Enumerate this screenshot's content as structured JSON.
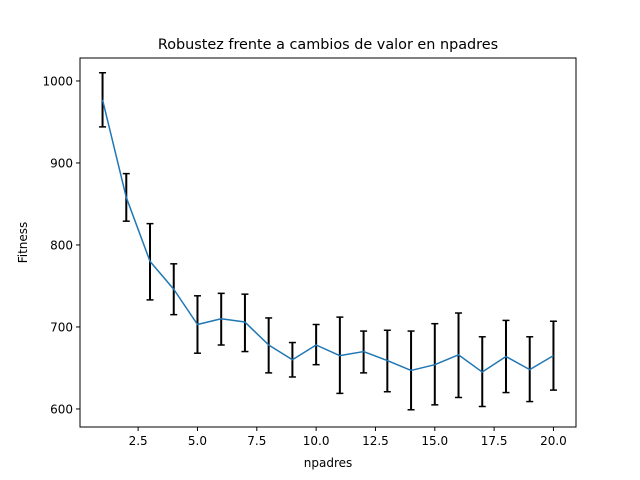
{
  "chart_data": {
    "type": "line",
    "title": "Robustez frente a cambios de valor en npadres",
    "xlabel": "npadres",
    "ylabel": "Fitness",
    "xlim": [
      0.05,
      20.95
    ],
    "ylim": [
      578,
      1028
    ],
    "xticks": [
      2.5,
      5.0,
      7.5,
      10.0,
      12.5,
      15.0,
      17.5,
      20.0
    ],
    "xtick_labels": [
      "2.5",
      "5.0",
      "7.5",
      "10.0",
      "12.5",
      "15.0",
      "17.5",
      "20.0"
    ],
    "yticks": [
      600,
      700,
      800,
      900,
      1000
    ],
    "ytick_labels": [
      "600",
      "700",
      "800",
      "900",
      "1000"
    ],
    "grid": false,
    "series": [
      {
        "color": "#1f77b4",
        "x": [
          1,
          2,
          3,
          4,
          5,
          6,
          7,
          8,
          9,
          10,
          11,
          12,
          13,
          14,
          15,
          16,
          17,
          18,
          19,
          20
        ],
        "y": [
          977,
          858,
          780,
          746,
          703,
          710,
          706,
          678,
          660,
          678,
          665,
          670,
          659,
          647,
          654,
          666,
          645,
          664,
          648,
          665
        ],
        "err_low": [
          944,
          829,
          733,
          715,
          668,
          678,
          670,
          644,
          639,
          654,
          619,
          644,
          621,
          599,
          605,
          614,
          603,
          620,
          609,
          623
        ],
        "err_high": [
          1010,
          887,
          826,
          777,
          738,
          741,
          740,
          711,
          681,
          703,
          712,
          695,
          696,
          695,
          704,
          717,
          688,
          708,
          688,
          707
        ]
      }
    ],
    "errorbar_color": "#000000"
  }
}
